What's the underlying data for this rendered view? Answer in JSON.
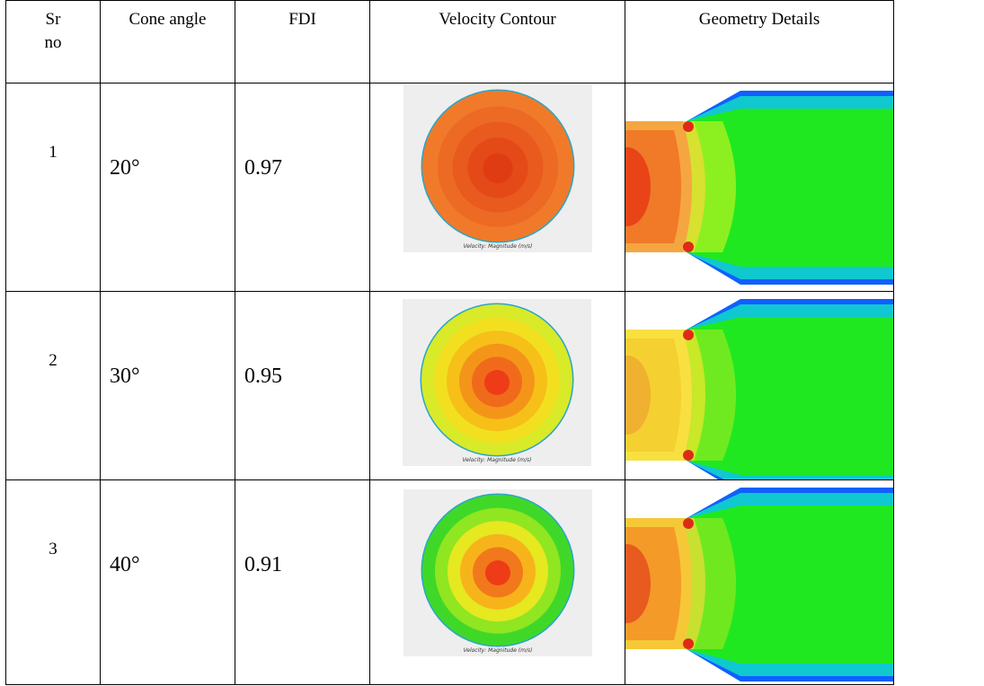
{
  "table": {
    "headers": {
      "sr": "Sr no",
      "cone_angle": "Cone angle",
      "fdi": "FDI",
      "velocity_contour": "Velocity Contour",
      "geometry_details": "Geometry Details"
    },
    "rows": [
      {
        "sr": "1",
        "cone_angle": "20°",
        "fdi": "0.97",
        "contour_caption": "Velocity: Magnitude (m/s)",
        "contour_colors": [
          "#f07a2a",
          "#ec6a24",
          "#e85a1e",
          "#e44a18",
          "#e03c14"
        ],
        "geometry_colors": {
          "inlet_core": "#e84418",
          "inlet": "#f07a28",
          "inlet_edge": "#f5a640",
          "bulge": "#d8e030",
          "mid": "#8cf020",
          "outlet": "#20e820",
          "wall": "#10c8d0",
          "edge": "#1060ff"
        }
      },
      {
        "sr": "2",
        "cone_angle": "30°",
        "fdi": "0.95",
        "contour_caption": "Velocity: Magnitude (m/s)",
        "contour_colors": [
          "#d8ea28",
          "#f2e020",
          "#f6c018",
          "#f4951a",
          "#f06a1c",
          "#ee3c18"
        ],
        "geometry_colors": {
          "inlet_core": "#f0b030",
          "inlet": "#f4d030",
          "inlet_edge": "#f8e040",
          "bulge": "#c8e828",
          "mid": "#70ea20",
          "outlet": "#20e820",
          "wall": "#10c8d0",
          "edge": "#1060ff"
        }
      },
      {
        "sr": "3",
        "cone_angle": "40°",
        "fdi": "0.91",
        "contour_caption": "Velocity: Magnitude (m/s)",
        "contour_colors": [
          "#40d828",
          "#90e620",
          "#e6e820",
          "#f6b41a",
          "#f2781c",
          "#ee3c18"
        ],
        "geometry_colors": {
          "inlet_core": "#e85a20",
          "inlet": "#f49a28",
          "inlet_edge": "#f6c838",
          "bulge": "#c8e030",
          "mid": "#70e820",
          "outlet": "#20e820",
          "wall": "#10c8d0",
          "edge": "#1060ff"
        }
      }
    ]
  }
}
